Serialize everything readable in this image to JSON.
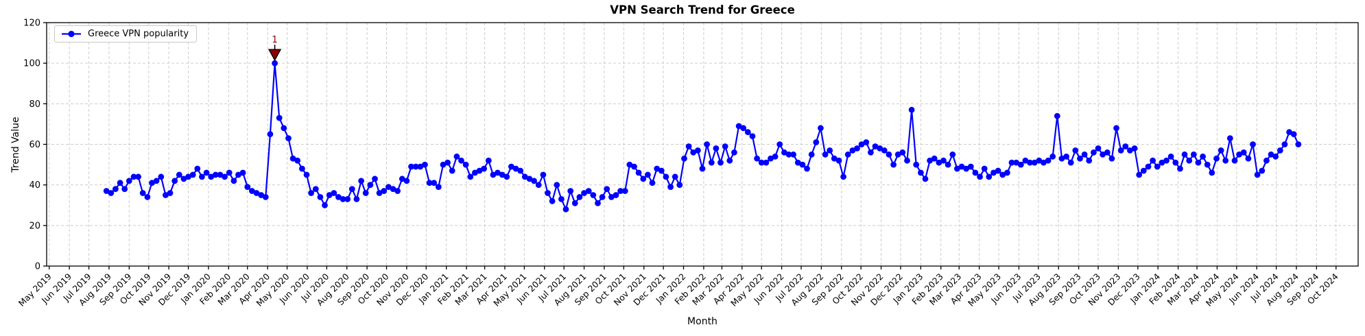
{
  "figure": {
    "title": "VPN Search Trend for Greece",
    "x_axis_label": "Month",
    "y_axis_label": "Trend Value"
  },
  "legend": {
    "label": "Greece VPN popularity"
  },
  "colors": {
    "line": "#0000ff",
    "annotation": "#8b0000",
    "grid": "#cccccc",
    "axis": "#000000"
  },
  "chart_data": {
    "type": "line",
    "title": "VPN Search Trend for Greece",
    "xlabel": "Month",
    "ylabel": "Trend Value",
    "legend_entries": [
      "Greece VPN popularity"
    ],
    "legend_position": "upper left",
    "grid": true,
    "ylim": [
      0,
      120
    ],
    "y_ticks": [
      0,
      20,
      40,
      60,
      80,
      100,
      120
    ],
    "x_range": [
      "2019-04-27",
      "2024-11-04"
    ],
    "x_tick_labels": [
      "May 2019",
      "Jun 2019",
      "Jul 2019",
      "Aug 2019",
      "Sep 2019",
      "Oct 2019",
      "Nov 2019",
      "Dec 2019",
      "Jan 2020",
      "Feb 2020",
      "Mar 2020",
      "Apr 2020",
      "May 2020",
      "Jun 2020",
      "Jul 2020",
      "Aug 2020",
      "Sep 2020",
      "Oct 2020",
      "Nov 2020",
      "Dec 2020",
      "Jan 2021",
      "Feb 2021",
      "Mar 2021",
      "Apr 2021",
      "May 2021",
      "Jun 2021",
      "Jul 2021",
      "Aug 2021",
      "Sep 2021",
      "Oct 2021",
      "Nov 2021",
      "Dec 2021",
      "Jan 2022",
      "Feb 2022",
      "Mar 2022",
      "Apr 2022",
      "May 2022",
      "Jun 2022",
      "Jul 2022",
      "Aug 2022",
      "Sep 2022",
      "Oct 2022",
      "Nov 2022",
      "Dec 2022",
      "Jan 2023",
      "Feb 2023",
      "Mar 2023",
      "Apr 2023",
      "May 2023",
      "Jun 2023",
      "Jul 2023",
      "Aug 2023",
      "Sep 2023",
      "Oct 2023",
      "Nov 2023",
      "Dec 2023",
      "Jan 2024",
      "Feb 2024",
      "Mar 2024",
      "Apr 2024",
      "May 2024",
      "Jun 2024",
      "Jul 2024",
      "Aug 2024",
      "Sep 2024",
      "Oct 2024"
    ],
    "series": [
      {
        "name": "Greece VPN popularity",
        "color": "#0000ff",
        "marker": "circle",
        "start_date": "2019-07-28",
        "interval_days": 7,
        "values": [
          37,
          36,
          38,
          41,
          38,
          42,
          44,
          44,
          36,
          34,
          41,
          42,
          44,
          35,
          36,
          42,
          45,
          43,
          44,
          45,
          48,
          44,
          46,
          44,
          45,
          45,
          44,
          46,
          42,
          45,
          46,
          39,
          37,
          36,
          35,
          34,
          65,
          100,
          73,
          68,
          63,
          53,
          52,
          48,
          45,
          36,
          38,
          34,
          30,
          35,
          36,
          34,
          33,
          33,
          38,
          33,
          42,
          36,
          40,
          43,
          36,
          37,
          39,
          38,
          37,
          43,
          42,
          49,
          49,
          49,
          50,
          41,
          41,
          39,
          50,
          51,
          47,
          54,
          52,
          50,
          44,
          46,
          47,
          48,
          52,
          45,
          46,
          45,
          44,
          49,
          48,
          47,
          44,
          43,
          42,
          40,
          45,
          36,
          32,
          40,
          33,
          28,
          37,
          31,
          34,
          36,
          37,
          35,
          31,
          34,
          38,
          34,
          35,
          37,
          37,
          50,
          49,
          46,
          43,
          45,
          41,
          48,
          47,
          44,
          39,
          44,
          40,
          53,
          59,
          56,
          57,
          48,
          60,
          51,
          58,
          51,
          59,
          52,
          56,
          69,
          68,
          66,
          64,
          53,
          51,
          51,
          53,
          54,
          60,
          56,
          55,
          55,
          51,
          50,
          48,
          55,
          61,
          68,
          55,
          57,
          53,
          52,
          44,
          55,
          57,
          58,
          60,
          61,
          56,
          59,
          58,
          57,
          55,
          50,
          55,
          56,
          52,
          77,
          50,
          46,
          43,
          52,
          53,
          51,
          52,
          50,
          55,
          48,
          49,
          48,
          49,
          46,
          44,
          48,
          44,
          46,
          47,
          45,
          46,
          51,
          51,
          50,
          52,
          51,
          51,
          52,
          51,
          52,
          54,
          74,
          53,
          54,
          51,
          57,
          53,
          55,
          52,
          56,
          58,
          55,
          56,
          53,
          68,
          57,
          59,
          57,
          58,
          45,
          47,
          49,
          52,
          49,
          51,
          52,
          54,
          51,
          48,
          55,
          52,
          55,
          51,
          54,
          50,
          46,
          53,
          57,
          52,
          63,
          52,
          55,
          56,
          53,
          60,
          45,
          47,
          52,
          55,
          54,
          57,
          60,
          66,
          65,
          60
        ]
      }
    ],
    "annotations": [
      {
        "label": "1",
        "date": "2020-04-12",
        "value": 100,
        "color": "#8b0000"
      }
    ]
  }
}
